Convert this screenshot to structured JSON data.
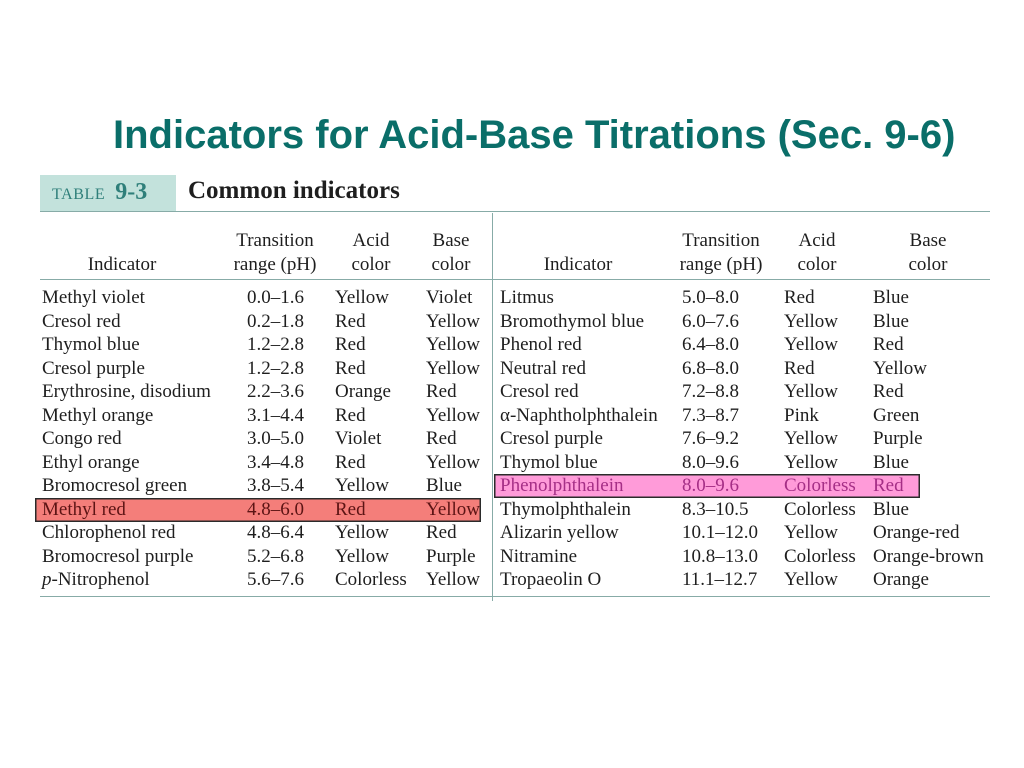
{
  "slide": {
    "title": "Indicators for Acid-Base Titrations (Sec. 9-6)"
  },
  "table": {
    "label": "TABLE",
    "number": "9-3",
    "caption": "Common indicators",
    "headers": {
      "indicator": "Indicator",
      "range": [
        "Transition",
        "range (pH)"
      ],
      "acid": [
        "Acid",
        "color"
      ],
      "base": [
        "Base",
        "color"
      ]
    },
    "left_rows": [
      {
        "indicator": "Methyl violet",
        "range": "0.0–1.6",
        "acid_color": "Yellow",
        "base_color": "Violet"
      },
      {
        "indicator": "Cresol red",
        "range": "0.2–1.8",
        "acid_color": "Red",
        "base_color": "Yellow"
      },
      {
        "indicator": "Thymol blue",
        "range": "1.2–2.8",
        "acid_color": "Red",
        "base_color": "Yellow"
      },
      {
        "indicator": "Cresol purple",
        "range": "1.2–2.8",
        "acid_color": "Red",
        "base_color": "Yellow"
      },
      {
        "indicator": "Erythrosine, disodium",
        "range": "2.2–3.6",
        "acid_color": "Orange",
        "base_color": "Red"
      },
      {
        "indicator": "Methyl orange",
        "range": "3.1–4.4",
        "acid_color": "Red",
        "base_color": "Yellow"
      },
      {
        "indicator": "Congo red",
        "range": "3.0–5.0",
        "acid_color": "Violet",
        "base_color": "Red"
      },
      {
        "indicator": "Ethyl orange",
        "range": "3.4–4.8",
        "acid_color": "Red",
        "base_color": "Yellow"
      },
      {
        "indicator": "Bromocresol green",
        "range": "3.8–5.4",
        "acid_color": "Yellow",
        "base_color": "Blue"
      },
      {
        "indicator": "Methyl red",
        "range": "4.8–6.0",
        "acid_color": "Red",
        "base_color": "Yellow",
        "highlight": {
          "fill": "#f47e7a",
          "text": "#5c1414",
          "border": "#2b2b2b"
        }
      },
      {
        "indicator": "Chlorophenol red",
        "range": "4.8–6.4",
        "acid_color": "Yellow",
        "base_color": "Red"
      },
      {
        "indicator": "Bromocresol purple",
        "range": "5.2–6.8",
        "acid_color": "Yellow",
        "base_color": "Purple"
      },
      {
        "indicator_italic": "p",
        "indicator": "-Nitrophenol",
        "range": "5.6–7.6",
        "acid_color": "Colorless",
        "base_color": "Yellow"
      }
    ],
    "right_rows": [
      {
        "indicator": "Litmus",
        "range": "5.0–8.0",
        "acid_color": "Red",
        "base_color": "Blue"
      },
      {
        "indicator": "Bromothymol blue",
        "range": "6.0–7.6",
        "acid_color": "Yellow",
        "base_color": "Blue"
      },
      {
        "indicator": "Phenol red",
        "range": "6.4–8.0",
        "acid_color": "Yellow",
        "base_color": "Red"
      },
      {
        "indicator": "Neutral red",
        "range": "6.8–8.0",
        "acid_color": "Red",
        "base_color": "Yellow"
      },
      {
        "indicator": "Cresol red",
        "range": "7.2–8.8",
        "acid_color": "Yellow",
        "base_color": "Red"
      },
      {
        "indicator": "α-Naphtholphthalein",
        "range": "7.3–8.7",
        "acid_color": "Pink",
        "base_color": "Green"
      },
      {
        "indicator": "Cresol purple",
        "range": "7.6–9.2",
        "acid_color": "Yellow",
        "base_color": "Purple"
      },
      {
        "indicator": "Thymol blue",
        "range": "8.0–9.6",
        "acid_color": "Yellow",
        "base_color": "Blue"
      },
      {
        "indicator": "Phenolphthalein",
        "range": "8.0–9.6",
        "acid_color": "Colorless",
        "base_color": "Red",
        "highlight": {
          "fill": "#ff9bd9",
          "text": "#a52f86",
          "border": "#2b2b2b"
        }
      },
      {
        "indicator": "Thymolphthalein",
        "range": "8.3–10.5",
        "acid_color": "Colorless",
        "base_color": "Blue"
      },
      {
        "indicator": "Alizarin yellow",
        "range": "10.1–12.0",
        "acid_color": "Yellow",
        "base_color": "Orange-red"
      },
      {
        "indicator": "Nitramine",
        "range": "10.8–13.0",
        "acid_color": "Colorless",
        "base_color": "Orange-brown"
      },
      {
        "indicator": "Tropaeolin O",
        "range": "11.1–12.7",
        "acid_color": "Yellow",
        "base_color": "Orange"
      }
    ]
  },
  "colors": {
    "title": "#0a6e69",
    "label_box": "#c3e2dc",
    "label_text": "#2f7f7a",
    "rule": "#87aba7",
    "text": "#1e1e1e",
    "page_bg": "#ffffff"
  }
}
